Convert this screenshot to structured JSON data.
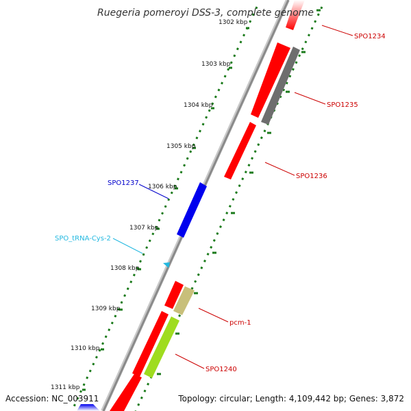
{
  "title": "Ruegeria pomeroyi DSS-3, complete genome",
  "footer": {
    "accession": "Accession: NC_003911",
    "topology": "Topology: circular; Length: 4,109,442 bp; Genes: 3,872"
  },
  "ticks": [
    "1302 kbp",
    "1303 kbp",
    "1304 kbp",
    "1305 kbp",
    "1306 kbp",
    "1307 kbp",
    "1308 kbp",
    "1309 kbp",
    "1310 kbp",
    "1311 kbp"
  ],
  "colors": {
    "cds": "#ff0000",
    "cds_reverse": "#0000ee",
    "pseudo": "#6e6e6e",
    "trna": "#22b8e0",
    "misc_a": "#c8bf7a",
    "misc_b": "#9fdc1f",
    "backbone": "#8a8a8a",
    "ticks": "#1a7a1a"
  },
  "genes": [
    {
      "id": "SPO1234",
      "label": "SPO1234",
      "color": "#cc0000",
      "type": "cds"
    },
    {
      "id": "SPO1235",
      "label": "SPO1235",
      "color": "#cc0000",
      "type": "cds"
    },
    {
      "id": "SPO1236",
      "label": "SPO1236",
      "color": "#cc0000",
      "type": "cds"
    },
    {
      "id": "SPO1237",
      "label": "SPO1237",
      "color": "#0000cc",
      "type": "cds"
    },
    {
      "id": "SPO_tRNA-Cys-2",
      "label": "SPO_tRNA-Cys-2",
      "color": "#22b8e0",
      "type": "trna"
    },
    {
      "id": "pcm-1",
      "label": "pcm-1",
      "color": "#cc0000",
      "type": "cds"
    },
    {
      "id": "SPO1240",
      "label": "SPO1240",
      "color": "#cc0000",
      "type": "cds"
    }
  ]
}
